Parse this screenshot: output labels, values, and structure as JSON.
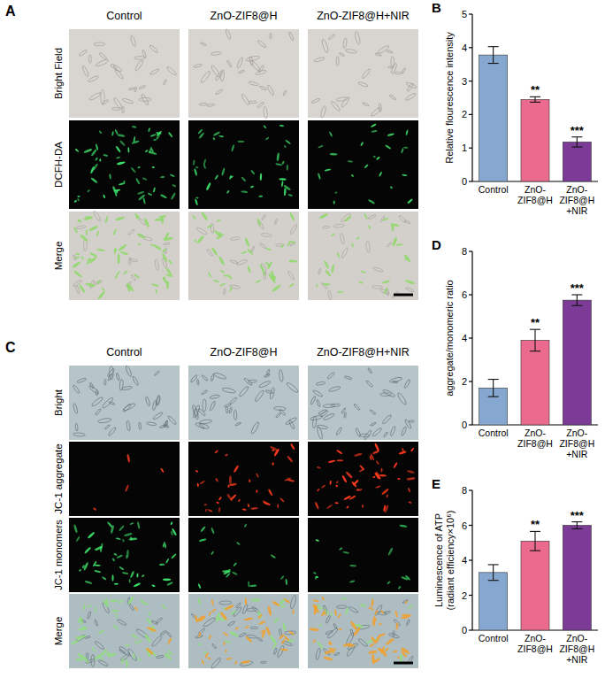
{
  "chart_data": [
    {
      "type": "bar",
      "panel_label": "B",
      "y_label": "Relative flourescence intensity",
      "categories": [
        "Control",
        "ZnO-ZIF8@H",
        "ZnO-ZIF8@H+NIR"
      ],
      "values": [
        3.78,
        2.45,
        1.18
      ],
      "errors": [
        0.25,
        0.08,
        0.15
      ],
      "significance": [
        null,
        "**",
        "***"
      ],
      "colors": [
        "#86a8d0",
        "#ea6b8e",
        "#7b3b96"
      ],
      "ylim": [
        0,
        5
      ],
      "yticks": [
        0,
        1,
        2,
        3,
        4,
        5
      ]
    },
    {
      "type": "bar",
      "panel_label": "D",
      "y_label": "aggregate/monomeric ratio",
      "categories": [
        "Control",
        "ZnO-ZIF8@H",
        "ZnO-ZIF8@H+NIR"
      ],
      "values": [
        1.7,
        3.9,
        5.75
      ],
      "errors": [
        0.4,
        0.5,
        0.25
      ],
      "significance": [
        null,
        "**",
        "***"
      ],
      "colors": [
        "#86a8d0",
        "#ea6b8e",
        "#7b3b96"
      ],
      "ylim": [
        0,
        8
      ],
      "yticks": [
        0,
        2,
        4,
        6,
        8
      ]
    },
    {
      "type": "bar",
      "panel_label": "E",
      "y_label": "Luminescence of ATP (radiant efficiency×10⁶)",
      "categories": [
        "Control",
        "ZnO-ZIF8@H",
        "ZnO-ZIF8@H+NIR"
      ],
      "values": [
        3.3,
        5.1,
        6.0
      ],
      "errors": [
        0.45,
        0.55,
        0.2
      ],
      "significance": [
        null,
        "**",
        "***"
      ],
      "colors": [
        "#86a8d0",
        "#ea6b8e",
        "#7b3b96"
      ],
      "ylim": [
        0,
        8
      ],
      "yticks": [
        0,
        2,
        4,
        6,
        8
      ]
    }
  ],
  "image_panels": [
    {
      "panel_label": "A",
      "columns": [
        "Control",
        "ZnO-ZIF8@H",
        "ZnO-ZIF8@H+NIR"
      ],
      "rows": [
        "Bright Field",
        "DCFH-DA",
        "Merge"
      ]
    },
    {
      "panel_label": "C",
      "columns": [
        "Control",
        "ZnO-ZIF8@H",
        "ZnO-ZIF8@H+NIR"
      ],
      "rows": [
        "Bright",
        "JC-1 aggregate",
        "JC-1 monomers",
        "Merge"
      ]
    }
  ]
}
